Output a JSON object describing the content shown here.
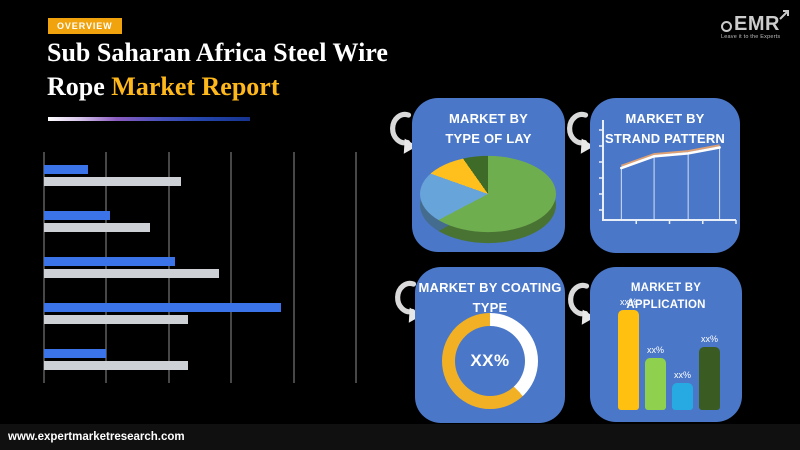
{
  "header": {
    "badge": "OVERVIEW",
    "title_line1": "Sub Saharan Africa Steel Wire",
    "title_line2_white": "Rope",
    "title_line2_accent": "Market Report"
  },
  "logo": {
    "text": "EMR",
    "tagline": "Leave it to the Experts"
  },
  "panels": {
    "type_of_lay": {
      "title1": "MARKET BY",
      "title2": "TYPE OF LAY"
    },
    "strand_pattern": {
      "title1": "MARKET BY",
      "title2": "STRAND PATTERN"
    },
    "coating_type": {
      "title1": "MARKET BY COATING",
      "title2": "TYPE",
      "center_label": "XX%"
    },
    "application": {
      "title1": "MARKET BY APPLICATION"
    }
  },
  "footer": {
    "url": "www.expertmarketresearch.com"
  },
  "colors": {
    "accent_gold": "#FFB81C",
    "badge_orange": "#F0A30C",
    "panel_blue": "#4A77C7",
    "bar_blue": "#3B73E8",
    "bar_gray": "#CDD0D4",
    "grid_line": "#474747"
  },
  "chart_data": [
    {
      "id": "overview-grouped-bars",
      "type": "bar",
      "orientation": "horizontal",
      "title": "",
      "categories": [
        "group-1",
        "group-2",
        "group-3",
        "group-4",
        "group-5"
      ],
      "series": [
        {
          "name": "series-blue",
          "color": "#3B73E8",
          "values": [
            0.7,
            1.05,
            2.1,
            3.8,
            1.0
          ]
        },
        {
          "name": "series-gray",
          "color": "#CDD0D4",
          "values": [
            2.2,
            1.7,
            2.8,
            2.3,
            2.3
          ]
        }
      ],
      "xlim": [
        0,
        5
      ],
      "gridlines": 6,
      "axis_labels": "none",
      "legend": "none"
    },
    {
      "id": "type-of-lay-pie",
      "type": "pie",
      "style": "3d",
      "title": "MARKET BY TYPE OF LAY",
      "slices": [
        {
          "label": "segment-1",
          "value": 63,
          "color": "#6FAE4E"
        },
        {
          "label": "segment-2",
          "value": 21,
          "color": "#67A4D9"
        },
        {
          "label": "segment-3",
          "value": 10,
          "color": "#FFC01E"
        },
        {
          "label": "segment-4",
          "value": 6,
          "color": "#3F6B28"
        }
      ],
      "labels_shown": false
    },
    {
      "id": "strand-pattern-line",
      "type": "line",
      "title": "MARKET BY STRAND PATTERN",
      "x_positions_pct": [
        14,
        39,
        65,
        89
      ],
      "values": [
        53,
        65,
        68,
        74
      ],
      "ylim": [
        0,
        100
      ],
      "line_colors": [
        "#FFFFFF",
        "#DDA074"
      ],
      "drop_lines": true,
      "y_tick_count": 6,
      "x_tick_count": 4,
      "axis_labels": "none"
    },
    {
      "id": "coating-type-donut",
      "type": "pie",
      "subtype": "donut",
      "title": "MARKET BY COATING TYPE",
      "center_label": "XX%",
      "slices": [
        {
          "label": "segment-1",
          "value": 38,
          "color": "#FFFFFF"
        },
        {
          "label": "segment-2",
          "value": 62,
          "color": "#F2B124"
        }
      ]
    },
    {
      "id": "application-bars",
      "type": "bar",
      "orientation": "vertical",
      "title": "MARKET BY APPLICATION",
      "categories": [
        "bar-1",
        "bar-2",
        "bar-3",
        "bar-4"
      ],
      "values": [
        100,
        52,
        27,
        63
      ],
      "value_labels": [
        "xx%",
        "xx%",
        "xx%",
        "xx%"
      ],
      "colors": [
        "#FFC010",
        "#8FD14F",
        "#27AAE1",
        "#3A5B22"
      ],
      "ylim": [
        0,
        100
      ]
    }
  ]
}
